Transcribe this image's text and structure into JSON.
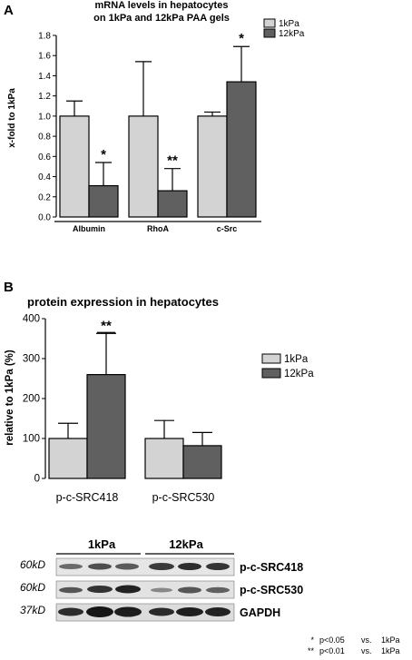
{
  "chart_data": [
    {
      "type": "bar",
      "panel": "A",
      "title_lines": [
        "mRNA levels in hepatocytes",
        "on 1kPa and 12kPa PAA gels"
      ],
      "ylabel": "x-fold to 1kPa",
      "ylim": [
        0.0,
        1.8
      ],
      "yticks": [
        "0.0",
        "0.2",
        "0.4",
        "0.6",
        "0.8",
        "1.0",
        "1.2",
        "1.4",
        "1.6",
        "1.8"
      ],
      "categories": [
        "Albumin",
        "RhoA",
        "c-Src"
      ],
      "series": [
        {
          "name": "1kPa",
          "color": "#d3d3d3",
          "values": [
            1.0,
            1.0,
            1.0
          ],
          "errors": [
            0.15,
            0.54,
            0.04
          ],
          "sig": [
            "",
            "",
            ""
          ]
        },
        {
          "name": "12kPa",
          "color": "#606060",
          "values": [
            0.31,
            0.26,
            1.34
          ],
          "errors": [
            0.23,
            0.22,
            0.35
          ],
          "sig": [
            "*",
            "**",
            "*"
          ]
        }
      ],
      "legend_position": "top-right"
    },
    {
      "type": "bar",
      "panel": "B",
      "title": "protein expression in hepatocytes",
      "ylabel": "relative to 1kPa (%)",
      "ylim": [
        0,
        400
      ],
      "yticks": [
        "0",
        "100",
        "200",
        "300",
        "400"
      ],
      "categories": [
        "p-c-SRC418",
        "p-c-SRC530"
      ],
      "series": [
        {
          "name": "1kPa",
          "color": "#d3d3d3",
          "values": [
            100,
            100
          ],
          "errors": [
            38,
            45
          ],
          "sig": [
            "",
            ""
          ]
        },
        {
          "name": "12kPa",
          "color": "#606060",
          "values": [
            260,
            82
          ],
          "errors": [
            103,
            33
          ],
          "sig": [
            "**",
            ""
          ]
        }
      ],
      "legend_position": "right"
    }
  ],
  "blot": {
    "conditions": [
      "1kPa",
      "12kPa"
    ],
    "rows": [
      {
        "kd": "60kD",
        "protein": "p-c-SRC418"
      },
      {
        "kd": "60kD",
        "protein": "p-c-SRC530"
      },
      {
        "kd": "37kD",
        "protein": "GAPDH"
      }
    ]
  },
  "footnotes": [
    {
      "mark": "*",
      "text": "p<0.05",
      "vs": "vs.",
      "ref": "1kPa"
    },
    {
      "mark": "**",
      "text": "p<0.01",
      "vs": "vs.",
      "ref": "1kPa"
    }
  ]
}
